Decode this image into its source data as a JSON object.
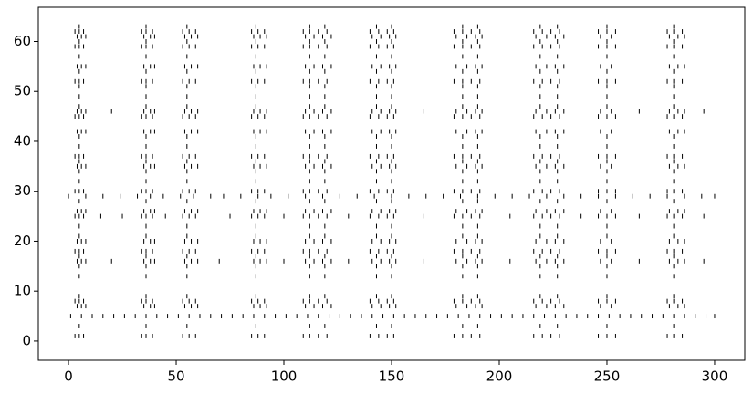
{
  "chart_data": {
    "type": "eventplot",
    "color": "#000000",
    "xlim": [
      -14,
      314
    ],
    "ylim": [
      -3.85,
      66.85
    ],
    "xticks": [
      0,
      50,
      100,
      150,
      200,
      250,
      300
    ],
    "yticks": [
      0,
      10,
      20,
      30,
      40,
      50,
      60
    ],
    "series": [
      {
        "y": 1,
        "x": [
          3,
          5,
          7,
          34,
          36,
          39,
          53,
          56,
          59,
          85,
          88,
          91,
          109,
          112,
          116,
          120,
          140,
          144,
          148,
          151,
          179,
          183,
          187,
          191,
          216,
          220,
          224,
          228,
          246,
          250,
          254,
          278,
          281,
          285
        ]
      },
      {
        "y": 3,
        "x": [
          5,
          36,
          55,
          87,
          112,
          119,
          143,
          150,
          183,
          190,
          219,
          227,
          250,
          281
        ]
      },
      {
        "y": 5,
        "x": [
          1,
          6,
          11,
          16,
          21,
          26,
          31,
          36,
          41,
          46,
          51,
          56,
          61,
          66,
          71,
          76,
          81,
          86,
          91,
          96,
          101,
          106,
          111,
          116,
          121,
          126,
          131,
          136,
          141,
          146,
          151,
          156,
          161,
          166,
          171,
          176,
          181,
          186,
          191,
          196,
          201,
          206,
          211,
          216,
          221,
          226,
          231,
          236,
          241,
          246,
          251,
          256,
          261,
          266,
          271,
          276,
          281,
          286,
          291,
          296,
          300
        ]
      },
      {
        "y": 7,
        "x": [
          4,
          6,
          8,
          35,
          38,
          40,
          54,
          57,
          60,
          86,
          89,
          92,
          110,
          114,
          118,
          122,
          141,
          145,
          149,
          152,
          180,
          185,
          189,
          192,
          217,
          222,
          226,
          230,
          247,
          252,
          257,
          279,
          283,
          286
        ]
      },
      {
        "y": 8,
        "x": [
          3,
          5,
          7,
          34,
          36,
          39,
          53,
          56,
          59,
          85,
          88,
          91,
          109,
          112,
          116,
          120,
          140,
          144,
          148,
          151,
          179,
          183,
          187,
          191,
          216,
          220,
          224,
          228,
          246,
          250,
          254,
          278,
          281,
          285
        ]
      },
      {
        "y": 9,
        "x": [
          5,
          36,
          55,
          87,
          112,
          119,
          143,
          150,
          183,
          190,
          219,
          227,
          250,
          281
        ]
      },
      {
        "y": 13,
        "x": [
          5,
          36,
          55,
          87,
          112,
          119,
          143,
          150,
          183,
          190,
          219,
          227,
          250,
          281
        ]
      },
      {
        "y": 15,
        "x": [
          5,
          36,
          55,
          87,
          112,
          119,
          143,
          150,
          183,
          190,
          219,
          227,
          250,
          281
        ]
      },
      {
        "y": 16,
        "x": [
          4,
          6,
          8,
          20,
          35,
          38,
          40,
          54,
          57,
          60,
          70,
          86,
          89,
          92,
          100,
          110,
          114,
          118,
          122,
          130,
          141,
          145,
          149,
          152,
          165,
          180,
          185,
          189,
          192,
          205,
          217,
          222,
          226,
          230,
          247,
          252,
          257,
          265,
          279,
          283,
          286,
          295
        ]
      },
      {
        "y": 17,
        "x": [
          5,
          36,
          55,
          87,
          112,
          119,
          143,
          150,
          183,
          190,
          219,
          227,
          250,
          281
        ]
      },
      {
        "y": 18,
        "x": [
          3,
          5,
          7,
          34,
          36,
          39,
          53,
          56,
          59,
          85,
          88,
          91,
          109,
          112,
          116,
          120,
          140,
          144,
          148,
          151,
          179,
          183,
          187,
          191,
          216,
          220,
          224,
          228,
          246,
          250,
          254,
          278,
          281,
          285
        ]
      },
      {
        "y": 20,
        "x": [
          4,
          6,
          8,
          35,
          38,
          40,
          54,
          57,
          60,
          86,
          89,
          92,
          110,
          114,
          118,
          122,
          141,
          145,
          149,
          152,
          180,
          185,
          189,
          192,
          217,
          222,
          226,
          230,
          247,
          252,
          257,
          279,
          283,
          286
        ]
      },
      {
        "y": 21,
        "x": [
          5,
          36,
          55,
          87,
          112,
          119,
          143,
          150,
          183,
          190,
          219,
          227,
          250,
          281
        ]
      },
      {
        "y": 23,
        "x": [
          5,
          36,
          55,
          87,
          112,
          119,
          143,
          150,
          183,
          190,
          219,
          227,
          250,
          281
        ]
      },
      {
        "y": 25,
        "x": [
          3,
          5,
          7,
          15,
          25,
          34,
          36,
          39,
          45,
          53,
          56,
          59,
          75,
          85,
          88,
          91,
          100,
          109,
          112,
          116,
          120,
          130,
          140,
          144,
          148,
          151,
          165,
          179,
          183,
          187,
          191,
          205,
          216,
          220,
          224,
          228,
          238,
          246,
          250,
          254,
          265,
          278,
          281,
          285,
          295
        ]
      },
      {
        "y": 26,
        "x": [
          4,
          6,
          8,
          35,
          38,
          40,
          54,
          57,
          60,
          86,
          89,
          92,
          110,
          114,
          118,
          122,
          141,
          145,
          149,
          152,
          180,
          185,
          189,
          192,
          217,
          222,
          226,
          230,
          247,
          252,
          257,
          279,
          283,
          286
        ]
      },
      {
        "y": 28,
        "x": [
          5,
          36,
          55,
          87,
          112,
          119,
          143,
          150,
          183,
          190,
          219,
          227,
          250,
          281
        ]
      },
      {
        "y": 29,
        "x": [
          0,
          8,
          16,
          24,
          32,
          38,
          44,
          52,
          58,
          66,
          72,
          80,
          88,
          94,
          102,
          110,
          118,
          126,
          134,
          142,
          150,
          158,
          166,
          174,
          182,
          190,
          198,
          206,
          214,
          222,
          230,
          238,
          246,
          254,
          262,
          270,
          278,
          286,
          294,
          300
        ]
      },
      {
        "y": 30,
        "x": [
          3,
          5,
          7,
          34,
          36,
          39,
          53,
          56,
          59,
          85,
          88,
          91,
          109,
          112,
          116,
          120,
          140,
          144,
          148,
          151,
          179,
          183,
          187,
          191,
          216,
          220,
          224,
          228,
          246,
          250,
          254,
          278,
          281,
          285
        ]
      },
      {
        "y": 32,
        "x": [
          5,
          36,
          55,
          87,
          112,
          119,
          143,
          150,
          183,
          190,
          219,
          227,
          250,
          281
        ]
      },
      {
        "y": 34,
        "x": [
          5,
          36,
          55,
          87,
          112,
          119,
          143,
          150,
          183,
          190,
          219,
          227,
          250,
          281
        ]
      },
      {
        "y": 35,
        "x": [
          4,
          6,
          8,
          35,
          38,
          40,
          54,
          57,
          60,
          86,
          89,
          92,
          110,
          114,
          118,
          122,
          141,
          145,
          149,
          152,
          180,
          185,
          189,
          192,
          217,
          222,
          226,
          230,
          247,
          252,
          257,
          279,
          283,
          286
        ]
      },
      {
        "y": 36,
        "x": [
          5,
          36,
          55,
          87,
          112,
          119,
          143,
          150,
          183,
          190,
          219,
          227,
          250,
          281
        ]
      },
      {
        "y": 37,
        "x": [
          3,
          5,
          7,
          34,
          36,
          39,
          53,
          56,
          59,
          85,
          88,
          91,
          109,
          112,
          116,
          120,
          140,
          144,
          148,
          151,
          179,
          183,
          187,
          191,
          216,
          220,
          224,
          228,
          246,
          250,
          254,
          278,
          281,
          285
        ]
      },
      {
        "y": 39,
        "x": [
          5,
          36,
          55,
          87,
          112,
          119,
          143,
          150,
          183,
          190,
          219,
          227,
          250,
          281
        ]
      },
      {
        "y": 41,
        "x": [
          5,
          36,
          55,
          87,
          112,
          119,
          143,
          150,
          183,
          190,
          219,
          227,
          250,
          281
        ]
      },
      {
        "y": 42,
        "x": [
          4,
          6,
          8,
          35,
          38,
          40,
          54,
          57,
          60,
          86,
          89,
          92,
          110,
          114,
          118,
          122,
          141,
          145,
          149,
          152,
          180,
          185,
          189,
          192,
          217,
          222,
          226,
          230,
          247,
          252,
          257,
          279,
          283,
          286
        ]
      },
      {
        "y": 45,
        "x": [
          3,
          5,
          7,
          34,
          36,
          39,
          53,
          56,
          59,
          85,
          88,
          91,
          109,
          112,
          116,
          120,
          140,
          144,
          148,
          151,
          179,
          183,
          187,
          191,
          216,
          220,
          224,
          228,
          246,
          250,
          254,
          278,
          281,
          285
        ]
      },
      {
        "y": 46,
        "x": [
          4,
          6,
          8,
          20,
          35,
          38,
          40,
          54,
          57,
          60,
          86,
          89,
          92,
          110,
          114,
          118,
          122,
          141,
          145,
          149,
          152,
          165,
          180,
          185,
          189,
          192,
          217,
          222,
          226,
          230,
          247,
          252,
          257,
          265,
          279,
          283,
          286,
          295
        ]
      },
      {
        "y": 47,
        "x": [
          5,
          36,
          55,
          87,
          112,
          119,
          143,
          150,
          183,
          190,
          219,
          227,
          250,
          281
        ]
      },
      {
        "y": 49,
        "x": [
          5,
          36,
          55,
          87,
          112,
          119,
          143,
          150,
          183,
          190,
          219,
          227,
          250,
          281
        ]
      },
      {
        "y": 51,
        "x": [
          5,
          36,
          55,
          87,
          112,
          119,
          143,
          150,
          183,
          190,
          219,
          227,
          250,
          281
        ]
      },
      {
        "y": 52,
        "x": [
          3,
          5,
          7,
          34,
          36,
          39,
          53,
          56,
          59,
          85,
          88,
          91,
          109,
          112,
          116,
          120,
          140,
          144,
          148,
          151,
          179,
          183,
          187,
          191,
          216,
          220,
          224,
          228,
          246,
          250,
          254,
          278,
          281,
          285
        ]
      },
      {
        "y": 54,
        "x": [
          5,
          36,
          55,
          87,
          112,
          119,
          143,
          150,
          183,
          190,
          219,
          227,
          250,
          281
        ]
      },
      {
        "y": 55,
        "x": [
          4,
          6,
          8,
          35,
          38,
          40,
          54,
          57,
          60,
          86,
          89,
          92,
          110,
          114,
          118,
          122,
          141,
          145,
          149,
          152,
          180,
          185,
          189,
          192,
          217,
          222,
          226,
          230,
          247,
          252,
          257,
          279,
          283,
          286
        ]
      },
      {
        "y": 57,
        "x": [
          5,
          36,
          55,
          87,
          112,
          119,
          143,
          150,
          183,
          190,
          219,
          227,
          250,
          281
        ]
      },
      {
        "y": 59,
        "x": [
          3,
          5,
          7,
          34,
          36,
          39,
          53,
          56,
          59,
          85,
          88,
          91,
          109,
          112,
          116,
          120,
          140,
          144,
          148,
          151,
          179,
          183,
          187,
          191,
          216,
          220,
          224,
          228,
          246,
          250,
          254,
          278,
          281,
          285
        ]
      },
      {
        "y": 60,
        "x": [
          5,
          36,
          55,
          87,
          112,
          119,
          143,
          150,
          183,
          190,
          219,
          227,
          250,
          281
        ]
      },
      {
        "y": 61,
        "x": [
          4,
          6,
          8,
          35,
          38,
          40,
          54,
          57,
          60,
          86,
          89,
          92,
          110,
          114,
          118,
          122,
          141,
          145,
          149,
          152,
          180,
          185,
          189,
          192,
          217,
          222,
          226,
          230,
          247,
          252,
          257,
          279,
          283,
          286
        ]
      },
      {
        "y": 62,
        "x": [
          3,
          5,
          7,
          34,
          36,
          39,
          53,
          56,
          59,
          85,
          88,
          91,
          109,
          112,
          116,
          120,
          140,
          144,
          148,
          151,
          179,
          183,
          187,
          191,
          216,
          220,
          224,
          228,
          246,
          250,
          254,
          278,
          281,
          285
        ]
      },
      {
        "y": 63,
        "x": [
          5,
          36,
          55,
          87,
          112,
          119,
          143,
          150,
          183,
          190,
          219,
          227,
          250,
          281
        ]
      }
    ]
  }
}
